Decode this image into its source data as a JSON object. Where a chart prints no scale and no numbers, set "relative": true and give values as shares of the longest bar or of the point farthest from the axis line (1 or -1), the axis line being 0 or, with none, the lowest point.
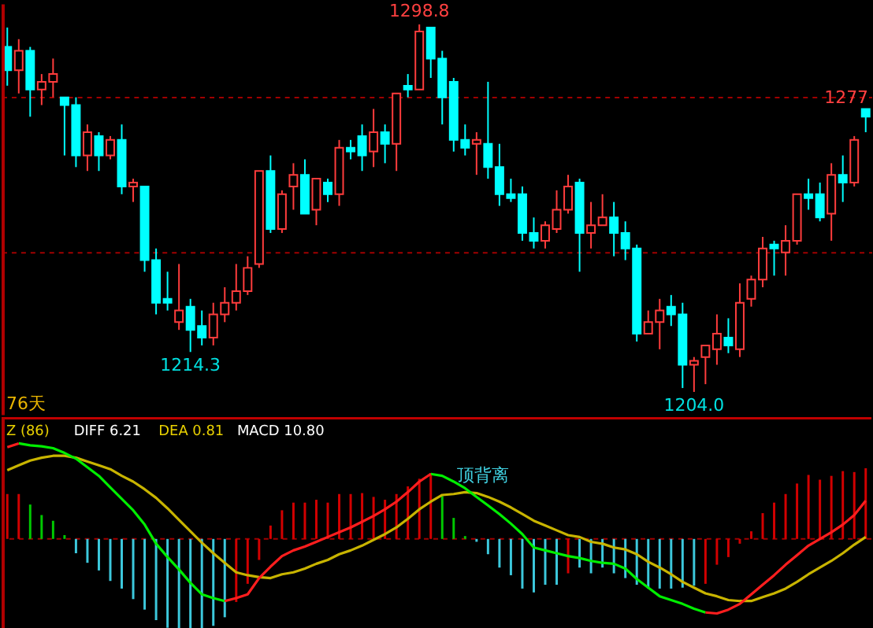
{
  "chart_data": [
    {
      "type": "candlestick",
      "categories": [
        null,
        null,
        null,
        null,
        null,
        null,
        null,
        null,
        null,
        null,
        null,
        null,
        null,
        null,
        null,
        null,
        null,
        null,
        null,
        null,
        null,
        null,
        null,
        null,
        null,
        null,
        null,
        null,
        null,
        null,
        null,
        null,
        null,
        null,
        null,
        null,
        null,
        null,
        null,
        null,
        null,
        null,
        null,
        null,
        null,
        null,
        null,
        null,
        null,
        null,
        null,
        null,
        null,
        null,
        null,
        null,
        null,
        null,
        null,
        null,
        null,
        null,
        null,
        null,
        null,
        null,
        null,
        null,
        null,
        null,
        null,
        null,
        null,
        null,
        null,
        null
      ],
      "ohlc": [
        [
          1293,
          1298,
          1283,
          1287
        ],
        [
          1287,
          1295,
          1281,
          1292
        ],
        [
          1292,
          1293,
          1275,
          1282
        ],
        [
          1282,
          1286,
          1278,
          1284
        ],
        [
          1284,
          1290,
          1280,
          1286
        ],
        [
          1280,
          1280,
          1265,
          1278
        ],
        [
          1278,
          1280,
          1262,
          1265
        ],
        [
          1265,
          1273,
          1261,
          1271
        ],
        [
          1270,
          1271,
          1261,
          1265
        ],
        [
          1265,
          1270,
          1264,
          1269
        ],
        [
          1269,
          1273,
          1255,
          1257
        ],
        [
          1257,
          1259,
          1253,
          1258
        ],
        [
          1257,
          1257,
          1235,
          1238
        ],
        [
          1238,
          1241,
          1224,
          1227
        ],
        [
          1228,
          1235,
          1225,
          1227
        ],
        [
          1222,
          1237,
          1220,
          1225
        ],
        [
          1226,
          1228,
          1214.3,
          1220
        ],
        [
          1221,
          1225,
          1216,
          1218
        ],
        [
          1218,
          1227,
          1216,
          1224
        ],
        [
          1224,
          1231,
          1222,
          1227
        ],
        [
          1227,
          1237,
          1225,
          1230
        ],
        [
          1230,
          1239,
          1229,
          1236
        ],
        [
          1237,
          1261,
          1236,
          1261
        ],
        [
          1261,
          1265,
          1245,
          1246
        ],
        [
          1246,
          1256,
          1245,
          1255
        ],
        [
          1257,
          1263,
          1251,
          1260
        ],
        [
          1260,
          1264,
          1250,
          1250
        ],
        [
          1251,
          1259,
          1247,
          1259
        ],
        [
          1258,
          1259,
          1253,
          1255
        ],
        [
          1255,
          1269,
          1252,
          1267
        ],
        [
          1267,
          1269,
          1264,
          1266
        ],
        [
          1270,
          1273,
          1261,
          1265
        ],
        [
          1266,
          1277,
          1262,
          1271
        ],
        [
          1271,
          1273,
          1263,
          1268
        ],
        [
          1268,
          1281,
          1261,
          1281
        ],
        [
          1283,
          1286,
          1280,
          1282
        ],
        [
          1282,
          1298.8,
          1282,
          1297
        ],
        [
          1298,
          1298,
          1285,
          1290
        ],
        [
          1290,
          1292,
          1273,
          1280
        ],
        [
          1284,
          1285,
          1266,
          1269
        ],
        [
          1269,
          1273,
          1265,
          1267
        ],
        [
          1268,
          1271,
          1260,
          1269
        ],
        [
          1268,
          1284,
          1259,
          1262
        ],
        [
          1262,
          1268,
          1252,
          1255
        ],
        [
          1255,
          1259,
          1253,
          1254
        ],
        [
          1255,
          1257,
          1243,
          1245
        ],
        [
          1245,
          1249,
          1241,
          1243
        ],
        [
          1243,
          1248,
          1241,
          1247
        ],
        [
          1246,
          1256,
          1245,
          1251
        ],
        [
          1251,
          1260,
          1250,
          1257
        ],
        [
          1258,
          1259,
          1235,
          1245
        ],
        [
          1245,
          1253,
          1241,
          1247
        ],
        [
          1247,
          1255,
          1247,
          1249
        ],
        [
          1249,
          1253,
          1239,
          1245
        ],
        [
          1245,
          1248,
          1238,
          1241
        ],
        [
          1241,
          1242,
          1217,
          1219
        ],
        [
          1219,
          1225,
          1219,
          1222
        ],
        [
          1222,
          1228,
          1215,
          1225
        ],
        [
          1226,
          1229,
          1221,
          1224
        ],
        [
          1224,
          1227,
          1205,
          1211
        ],
        [
          1211,
          1213,
          1204.0,
          1212
        ],
        [
          1213,
          1216,
          1206,
          1216
        ],
        [
          1215,
          1224,
          1211,
          1219
        ],
        [
          1218,
          1223,
          1214,
          1216
        ],
        [
          1215,
          1232,
          1213,
          1227
        ],
        [
          1228,
          1234,
          1226,
          1233
        ],
        [
          1233,
          1244,
          1231,
          1241
        ],
        [
          1242,
          1243,
          1234,
          1241
        ],
        [
          1240,
          1247,
          1234,
          1243
        ],
        [
          1243,
          1255,
          1242,
          1255
        ],
        [
          1255,
          1259,
          1251,
          1254
        ],
        [
          1255,
          1258,
          1248,
          1249
        ],
        [
          1250,
          1263,
          1243,
          1260
        ],
        [
          1260,
          1265,
          1253,
          1258
        ],
        [
          1258,
          1270,
          1257,
          1269
        ],
        [
          1277,
          1277,
          1271,
          1275
        ]
      ],
      "colors": [
        "#00ffff",
        "#ff3c3c",
        "#00ffff",
        "#ff3c3c",
        "#ff3c3c",
        "#00ffff",
        "#00ffff",
        "#ff3c3c",
        "#00ffff",
        "#ff3c3c",
        "#00ffff",
        "#ff3c3c",
        "#00ffff",
        "#00ffff",
        "#00ffff",
        "#ff3c3c",
        "#00ffff",
        "#00ffff",
        "#ff3c3c",
        "#ff3c3c",
        "#ff3c3c",
        "#ff3c3c",
        "#ff3c3c",
        "#00ffff",
        "#ff3c3c",
        "#ff3c3c",
        "#00ffff",
        "#ff3c3c",
        "#00ffff",
        "#ff3c3c",
        "#00ffff",
        "#00ffff",
        "#ff3c3c",
        "#00ffff",
        "#ff3c3c",
        "#00ffff",
        "#ff3c3c",
        "#00ffff",
        "#00ffff",
        "#00ffff",
        "#00ffff",
        "#ff3c3c",
        "#00ffff",
        "#00ffff",
        "#00ffff",
        "#00ffff",
        "#00ffff",
        "#ff3c3c",
        "#ff3c3c",
        "#ff3c3c",
        "#00ffff",
        "#ff3c3c",
        "#ff3c3c",
        "#00ffff",
        "#00ffff",
        "#00ffff",
        "#ff3c3c",
        "#ff3c3c",
        "#00ffff",
        "#00ffff",
        "#ff3c3c",
        "#ff3c3c",
        "#ff3c3c",
        "#00ffff",
        "#ff3c3c",
        "#ff3c3c",
        "#ff3c3c",
        "#00ffff",
        "#ff3c3c",
        "#ff3c3c",
        "#00ffff",
        "#00ffff",
        "#ff3c3c",
        "#00ffff",
        "#ff3c3c",
        "#00ffff"
      ],
      "ylim": [
        1198,
        1304
      ],
      "yticks": [
        {
          "value": 1240,
          "label": null
        },
        {
          "value": 1280,
          "label": null
        }
      ],
      "grid": "y",
      "tick_labels": false,
      "annotations": [
        "76天",
        {
          "text": "1298.8",
          "y": 1298.8
        },
        {
          "text": "1214.3",
          "y": 1214.3
        },
        {
          "text": "1204.0",
          "y": 1204.0
        },
        "1277"
      ]
    },
    {
      "type": "bar",
      "relative": true,
      "categories": [
        null,
        null,
        null,
        null,
        null,
        null,
        null,
        null,
        null,
        null,
        null,
        null,
        null,
        null,
        null,
        null,
        null,
        null,
        null,
        null,
        null,
        null,
        null,
        null,
        null,
        null,
        null,
        null,
        null,
        null,
        null,
        null,
        null,
        null,
        null,
        null,
        null,
        null,
        null,
        null,
        null,
        null,
        null,
        null,
        null,
        null,
        null,
        null,
        null,
        null,
        null,
        null,
        null,
        null,
        null,
        null,
        null,
        null,
        null,
        null,
        null,
        null,
        null,
        null,
        null,
        null,
        null,
        null,
        null,
        null,
        null,
        null,
        null,
        null,
        null,
        null
      ],
      "tick_labels": false,
      "ref_lines": [
        {
          "axis": "y",
          "value": 0,
          "color": "#a00000",
          "line_style": "dashed"
        }
      ],
      "series": [
        {
          "type": "bar",
          "values": [
            0.47,
            0.47,
            0.36,
            0.25,
            0.19,
            0.04,
            -0.15,
            -0.25,
            -0.33,
            -0.44,
            -0.52,
            -0.63,
            -0.74,
            -0.85,
            -0.93,
            -0.97,
            -0.97,
            -0.97,
            -0.91,
            -0.82,
            -0.66,
            -0.47,
            -0.22,
            0.14,
            0.3,
            0.38,
            0.38,
            0.41,
            0.38,
            0.47,
            0.47,
            0.48,
            0.44,
            0.41,
            0.47,
            0.55,
            0.63,
            0.69,
            0.45,
            0.22,
            0.03,
            -0.03,
            -0.16,
            -0.3,
            -0.38,
            -0.52,
            -0.56,
            -0.48,
            -0.48,
            -0.36,
            -0.3,
            -0.36,
            -0.3,
            -0.36,
            -0.41,
            -0.48,
            -0.52,
            -0.52,
            -0.52,
            -0.51,
            -0.49,
            -0.47,
            -0.27,
            -0.19,
            -0.05,
            0.08,
            0.27,
            0.38,
            0.47,
            0.58,
            0.67,
            0.62,
            0.66,
            0.71,
            0.7,
            0.74
          ],
          "colors": [
            "#d20000",
            "#d20000",
            "#00c800",
            "#00c800",
            "#00c800",
            "#00c800",
            "#3cc8dc",
            "#3cc8dc",
            "#3cc8dc",
            "#3cc8dc",
            "#3cc8dc",
            "#3cc8dc",
            "#3cc8dc",
            "#3cc8dc",
            "#3cc8dc",
            "#3cc8dc",
            "#3cc8dc",
            "#3cc8dc",
            "#3cc8dc",
            "#3cc8dc",
            "#d20000",
            "#d20000",
            "#d20000",
            "#d20000",
            "#d20000",
            "#d20000",
            "#d20000",
            "#d20000",
            "#d20000",
            "#d20000",
            "#d20000",
            "#d20000",
            "#d20000",
            "#d20000",
            "#d20000",
            "#d20000",
            "#d20000",
            "#d20000",
            "#00c800",
            "#00c800",
            "#00c800",
            "#3cc8dc",
            "#3cc8dc",
            "#3cc8dc",
            "#3cc8dc",
            "#3cc8dc",
            "#3cc8dc",
            "#3cc8dc",
            "#3cc8dc",
            "#d20000",
            "#3cc8dc",
            "#3cc8dc",
            "#3cc8dc",
            "#3cc8dc",
            "#3cc8dc",
            "#3cc8dc",
            "#3cc8dc",
            "#3cc8dc",
            "#3cc8dc",
            "#3cc8dc",
            "#3cc8dc",
            "#d20000",
            "#d20000",
            "#d20000",
            "#d20000",
            "#d20000",
            "#d20000",
            "#d20000",
            "#d20000",
            "#d20000",
            "#d20000",
            "#d20000",
            "#d20000",
            "#d20000",
            "#d20000",
            "#d20000"
          ]
        },
        {
          "type": "line",
          "color": "#c8b400",
          "values": [
            0.72,
            0.77,
            0.82,
            0.85,
            0.87,
            0.87,
            0.85,
            0.81,
            0.77,
            0.73,
            0.66,
            0.6,
            0.52,
            0.43,
            0.32,
            0.2,
            0.08,
            -0.04,
            -0.15,
            -0.25,
            -0.35,
            -0.38,
            -0.4,
            -0.41,
            -0.37,
            -0.35,
            -0.31,
            -0.26,
            -0.22,
            -0.16,
            -0.12,
            -0.07,
            -0.01,
            0.05,
            0.12,
            0.21,
            0.31,
            0.39,
            0.46,
            0.47,
            0.49,
            0.48,
            0.44,
            0.39,
            0.33,
            0.26,
            0.19,
            0.14,
            0.09,
            0.04,
            0.02,
            -0.03,
            -0.05,
            -0.09,
            -0.11,
            -0.16,
            -0.24,
            -0.3,
            -0.37,
            -0.45,
            -0.51,
            -0.57,
            -0.6,
            -0.64,
            -0.65,
            -0.65,
            -0.61,
            -0.57,
            -0.52,
            -0.45,
            -0.37,
            -0.3,
            -0.23,
            -0.15,
            -0.06,
            0.02
          ]
        },
        {
          "type": "line",
          "color": "#00ee00",
          "values": [
            null,
            1.0,
            0.98,
            0.97,
            0.95,
            0.9,
            0.84,
            0.75,
            0.66,
            0.54,
            0.42,
            0.3,
            0.15,
            -0.05,
            -0.19,
            -0.32,
            -0.46,
            -0.58,
            -0.62,
            -0.65,
            null,
            null,
            null,
            null,
            null,
            null,
            null,
            null,
            null,
            null,
            null,
            null,
            null,
            null,
            null,
            null,
            null,
            0.68,
            0.66,
            0.6,
            0.53,
            0.44,
            0.35,
            0.26,
            0.16,
            0.05,
            -0.09,
            -0.12,
            -0.15,
            -0.18,
            -0.2,
            -0.23,
            -0.25,
            -0.26,
            -0.31,
            -0.42,
            -0.51,
            -0.6,
            -0.64,
            -0.68,
            -0.73,
            -0.77,
            null,
            null,
            null,
            null,
            null,
            null,
            null,
            null,
            null,
            null,
            null,
            null,
            null,
            null
          ]
        },
        {
          "type": "line",
          "color": "#ff1e1e",
          "values": [
            0.96,
            1.0,
            null,
            null,
            null,
            null,
            null,
            null,
            null,
            null,
            null,
            null,
            null,
            null,
            null,
            null,
            null,
            null,
            null,
            -0.65,
            -0.62,
            -0.58,
            -0.41,
            -0.29,
            -0.18,
            -0.12,
            -0.08,
            -0.03,
            0.02,
            0.07,
            0.12,
            0.18,
            0.24,
            0.31,
            0.39,
            0.49,
            0.6,
            0.68,
            null,
            null,
            null,
            null,
            null,
            null,
            null,
            null,
            null,
            null,
            null,
            null,
            null,
            null,
            null,
            null,
            null,
            null,
            null,
            null,
            null,
            null,
            null,
            -0.77,
            -0.78,
            -0.74,
            -0.68,
            -0.58,
            -0.48,
            -0.38,
            -0.27,
            -0.17,
            -0.07,
            0.0,
            0.07,
            0.15,
            0.25,
            0.4
          ]
        }
      ],
      "annotations": [
        "Z (86)",
        "DIFF 6.21",
        "DEA 0.81",
        "MACD 10.80",
        "顶背离"
      ]
    }
  ]
}
